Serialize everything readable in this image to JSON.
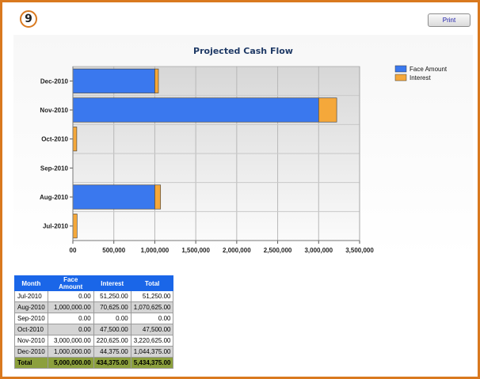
{
  "badge": "9",
  "print_label": "Print",
  "table": {
    "headers": [
      "Month",
      "Face Amount",
      "Interest",
      "Total"
    ],
    "rows": [
      [
        "Jul-2010",
        "0.00",
        "51,250.00",
        "51,250.00"
      ],
      [
        "Aug-2010",
        "1,000,000.00",
        "70,625.00",
        "1,070,625.00"
      ],
      [
        "Sep-2010",
        "0.00",
        "0.00",
        "0.00"
      ],
      [
        "Oct-2010",
        "0.00",
        "47,500.00",
        "47,500.00"
      ],
      [
        "Nov-2010",
        "3,000,000.00",
        "220,625.00",
        "3,220,625.00"
      ],
      [
        "Dec-2010",
        "1,000,000.00",
        "44,375.00",
        "1,044,375.00"
      ]
    ],
    "total": [
      "Total",
      "5,000,000.00",
      "434,375.00",
      "5,434,375.00"
    ]
  },
  "chart_data": {
    "type": "bar",
    "orientation": "horizontal",
    "stacked": true,
    "title": "Projected Cash Flow",
    "categories": [
      "Dec-2010",
      "Nov-2010",
      "Oct-2010",
      "Sep-2010",
      "Aug-2010",
      "Jul-2010"
    ],
    "series": [
      {
        "name": "Face Amount",
        "color": "#3a78ee",
        "values": [
          1000000,
          3000000,
          0,
          0,
          1000000,
          0
        ]
      },
      {
        "name": "Interest",
        "color": "#f5a83a",
        "values": [
          44375,
          220625,
          47500,
          0,
          70625,
          51250
        ]
      }
    ],
    "xlim": [
      0,
      3500000
    ],
    "xticks": [
      0,
      500000,
      1000000,
      1500000,
      2000000,
      2500000,
      3000000,
      3500000
    ],
    "xtick_labels": [
      "00",
      "500,000",
      "1,000,000",
      "1,500,000",
      "2,000,000",
      "2,500,000",
      "3,000,000",
      "3,500,000"
    ],
    "grid": true,
    "legend_position": "top-right"
  }
}
